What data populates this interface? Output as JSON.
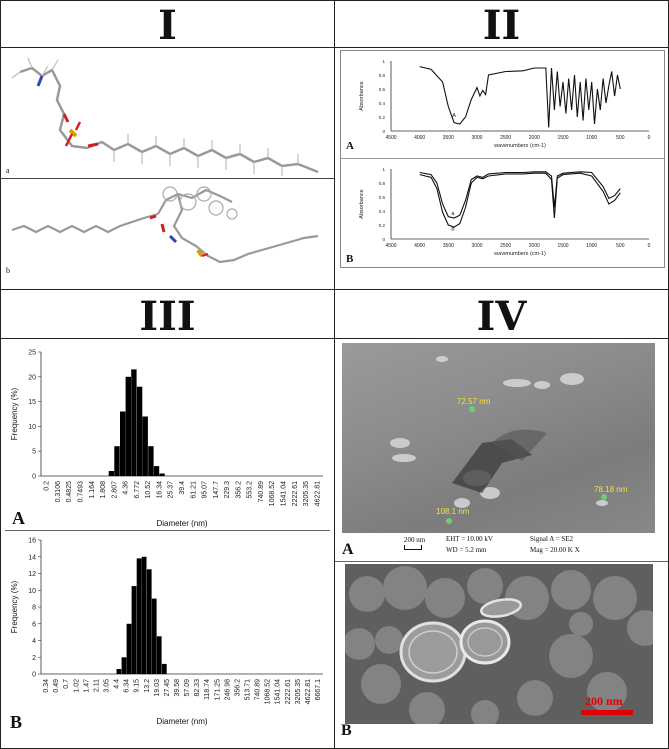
{
  "panels": {
    "p1": {
      "title": "I",
      "sub_a": "a",
      "sub_b": "b"
    },
    "p2": {
      "title": "II",
      "top": {
        "letter": "A",
        "ylabel": "Absorbance",
        "xlabel": "wavenumbers (cm-1)",
        "curve_label": "A"
      },
      "bottom": {
        "letter": "B",
        "ylabel": "Absorbance",
        "xlabel": "wavenumbers (cm-1)",
        "curve_a": "a",
        "curve_b": "b"
      }
    },
    "p3": {
      "title": "III",
      "letter_a": "A",
      "letter_b": "B"
    },
    "p4": {
      "title": "IV",
      "letter_a": "A",
      "letter_b": "B",
      "sem": {
        "measure1": "72.57 nm",
        "measure2": "108.1 nm",
        "measure3": "78.18 nm",
        "scale": "200 nm",
        "eht": "EHT = 10.00 kV",
        "wd": "WD = 5.2 mm",
        "signal": "Signal A = SE2",
        "mag": "Mag =  20.00 K X"
      },
      "tem": {
        "scale": "200 nm"
      }
    }
  },
  "chart_data": [
    {
      "type": "line",
      "panel": "II-A",
      "xlabel": "wavenumbers (cm-1)",
      "ylabel": "Absorbance",
      "x_ticks": [
        4500,
        4000,
        3500,
        3000,
        2500,
        2000,
        1500,
        1000,
        500,
        0
      ],
      "y_ticks": [
        1,
        0.8,
        0.6,
        0.4,
        0.2,
        0
      ],
      "xlim": [
        4500,
        0
      ],
      "ylim": [
        0,
        1
      ],
      "series": [
        {
          "x": [
            4000,
            3800,
            3600,
            3500,
            3400,
            3300,
            3200,
            3100,
            3000,
            2950,
            2900,
            2850,
            2800,
            2500,
            2200,
            2000,
            1800,
            1750,
            1700,
            1650,
            1600,
            1550,
            1500,
            1450,
            1400,
            1350,
            1300,
            1250,
            1200,
            1150,
            1100,
            1050,
            1000,
            950,
            900,
            850,
            800,
            750,
            700,
            650,
            600,
            550,
            500
          ],
          "y": [
            0.92,
            0.88,
            0.7,
            0.35,
            0.12,
            0.1,
            0.2,
            0.45,
            0.62,
            0.5,
            0.58,
            0.52,
            0.8,
            0.85,
            0.86,
            0.9,
            0.9,
            0.05,
            0.9,
            0.3,
            0.85,
            0.35,
            0.7,
            0.25,
            0.75,
            0.3,
            0.8,
            0.2,
            0.7,
            0.15,
            0.75,
            0.3,
            0.7,
            0.1,
            0.6,
            0.3,
            0.75,
            0.4,
            0.65,
            0.85,
            0.5,
            0.8,
            0.6
          ]
        }
      ]
    },
    {
      "type": "line",
      "panel": "II-B",
      "xlabel": "wavenumbers (cm-1)",
      "ylabel": "Absorbance",
      "x_ticks": [
        4500,
        4000,
        3500,
        3000,
        2500,
        2000,
        1500,
        1000,
        500,
        0
      ],
      "y_ticks": [
        1,
        0.8,
        0.6,
        0.4,
        0.2,
        0
      ],
      "xlim": [
        4500,
        0
      ],
      "ylim": [
        0,
        1
      ],
      "series": [
        {
          "name": "a",
          "x": [
            4000,
            3800,
            3700,
            3600,
            3500,
            3400,
            3300,
            3200,
            3100,
            3000,
            2900,
            2800,
            2500,
            2200,
            2000,
            1800,
            1700,
            1650,
            1600,
            1500,
            1200,
            1000,
            800,
            700,
            600,
            500
          ],
          "y": [
            0.95,
            0.92,
            0.8,
            0.5,
            0.32,
            0.3,
            0.34,
            0.55,
            0.85,
            0.9,
            0.88,
            0.93,
            0.95,
            0.95,
            0.96,
            0.96,
            0.9,
            0.45,
            0.9,
            0.94,
            0.96,
            0.95,
            0.75,
            0.58,
            0.62,
            0.72
          ]
        },
        {
          "name": "b",
          "x": [
            4000,
            3800,
            3700,
            3600,
            3500,
            3400,
            3300,
            3200,
            3100,
            3000,
            2900,
            2800,
            2500,
            2200,
            2000,
            1800,
            1700,
            1650,
            1600,
            1500,
            1200,
            1000,
            800,
            700,
            600,
            500
          ],
          "y": [
            0.92,
            0.88,
            0.72,
            0.38,
            0.2,
            0.17,
            0.22,
            0.45,
            0.8,
            0.88,
            0.86,
            0.9,
            0.93,
            0.93,
            0.94,
            0.94,
            0.85,
            0.3,
            0.87,
            0.92,
            0.94,
            0.9,
            0.68,
            0.5,
            0.55,
            0.66
          ]
        }
      ]
    },
    {
      "type": "bar",
      "panel": "III-A",
      "xlabel": "Diameter (nm)",
      "ylabel": "Frequency (%)",
      "ylim": [
        0,
        25
      ],
      "y_ticks": [
        0,
        5,
        10,
        15,
        20,
        25
      ],
      "x_ticks": [
        "0.2",
        "0.3106",
        "0.4825",
        "0.7493",
        "1.164",
        "1.808",
        "2.807",
        "4.36",
        "6.772",
        "10.52",
        "16.34",
        "25.37",
        "39.4",
        "61.21",
        "95.07",
        "147.7",
        "229.3",
        "356.2",
        "553.2",
        "740.89",
        "1068.52",
        "1541.04",
        "2222.61",
        "3205.35",
        "4622.81"
      ],
      "bars": [
        {
          "x": 12,
          "h": 1
        },
        {
          "x": 13,
          "h": 6
        },
        {
          "x": 14,
          "h": 13
        },
        {
          "x": 15,
          "h": 20
        },
        {
          "x": 16,
          "h": 21.5
        },
        {
          "x": 17,
          "h": 18
        },
        {
          "x": 18,
          "h": 12
        },
        {
          "x": 19,
          "h": 6
        },
        {
          "x": 20,
          "h": 2
        },
        {
          "x": 21,
          "h": 0.5
        }
      ]
    },
    {
      "type": "bar",
      "panel": "III-B",
      "xlabel": "Diameter (nm)",
      "ylabel": "Frequency (%)",
      "ylim": [
        0,
        16
      ],
      "y_ticks": [
        0,
        2,
        4,
        6,
        8,
        10,
        12,
        14,
        16
      ],
      "x_ticks": [
        "0.34",
        "0.49",
        "0.7",
        "1.02",
        "1.47",
        "2.11",
        "3.05",
        "4.4",
        "6.34",
        "9.15",
        "13.2",
        "19.03",
        "27.45",
        "39.58",
        "57.09",
        "82.33",
        "118.74",
        "171.25",
        "246.98",
        "356.2",
        "513.71",
        "740.89",
        "1068.52",
        "1541.04",
        "2222.61",
        "3205.35",
        "4622.81",
        "6667.1"
      ],
      "bars": [
        {
          "x": 15,
          "h": 0.6
        },
        {
          "x": 16,
          "h": 2
        },
        {
          "x": 17,
          "h": 6
        },
        {
          "x": 18,
          "h": 10.5
        },
        {
          "x": 19,
          "h": 13.8
        },
        {
          "x": 20,
          "h": 14
        },
        {
          "x": 21,
          "h": 12.5
        },
        {
          "x": 22,
          "h": 9
        },
        {
          "x": 23,
          "h": 4.5
        },
        {
          "x": 24,
          "h": 1.2
        }
      ]
    }
  ]
}
